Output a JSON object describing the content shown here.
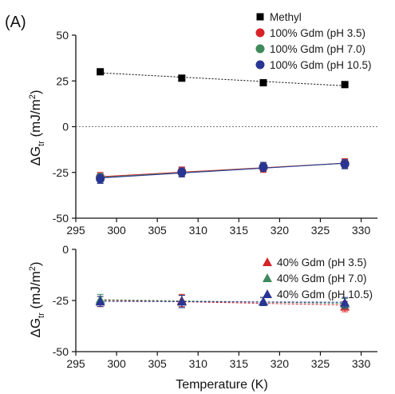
{
  "figure": {
    "panel_label": "(A)",
    "xlabel": "Temperature (K)",
    "ylabel_main": "ΔG",
    "ylabel_sub": "tr",
    "ylabel_unit": " (mJ/m",
    "ylabel_sup": "2",
    "ylabel_close": ")"
  },
  "chart_data": [
    {
      "type": "scatter",
      "xlim": [
        295,
        332
      ],
      "ylim": [
        -50,
        50
      ],
      "xticks": [
        295,
        300,
        305,
        310,
        315,
        320,
        325,
        330
      ],
      "yticks": [
        -50,
        -25,
        0,
        25,
        50
      ],
      "zero_line": true,
      "legend_position": "top-right",
      "series": [
        {
          "name": "Methyl",
          "marker": "square",
          "color": "#000000",
          "line": "dotted",
          "x": [
            298,
            308,
            318,
            328
          ],
          "y": [
            30,
            26.5,
            24,
            23
          ],
          "err": [
            0,
            0,
            0,
            0
          ]
        },
        {
          "name": "100% Gdm (pH 3.5)",
          "marker": "circle",
          "color": "#d8232a",
          "line": "solid",
          "x": [
            298,
            308,
            318,
            328
          ],
          "y": [
            -27.5,
            -24.5,
            -22.5,
            -20
          ],
          "err": [
            2.5,
            2.5,
            2.5,
            2.5
          ]
        },
        {
          "name": "100% Gdm (pH 7.0)",
          "marker": "circle",
          "color": "#3f8a5c",
          "line": "solid",
          "x": [
            298,
            308,
            318,
            328
          ],
          "y": [
            -28,
            -25,
            -22,
            -20.5
          ],
          "err": [
            2.5,
            2.5,
            2.5,
            2.5
          ]
        },
        {
          "name": "100% Gdm (pH 10.5)",
          "marker": "circle",
          "color": "#283593",
          "line": "solid",
          "x": [
            298,
            308,
            318,
            328
          ],
          "y": [
            -28.5,
            -25,
            -22,
            -20.5
          ],
          "err": [
            2.5,
            2.5,
            2.5,
            2.5
          ]
        }
      ]
    },
    {
      "type": "scatter",
      "xlim": [
        295,
        332
      ],
      "ylim": [
        -50,
        0
      ],
      "xticks": [
        295,
        300,
        305,
        310,
        315,
        320,
        325,
        330
      ],
      "yticks": [
        -50,
        -25,
        0
      ],
      "zero_line": false,
      "legend_position": "top-right",
      "series": [
        {
          "name": "40% Gdm (pH 3.5)",
          "marker": "triangle",
          "color": "#d8232a",
          "line": "dashed",
          "x": [
            298,
            308,
            318,
            328
          ],
          "y": [
            -25.5,
            -25,
            -25.5,
            -28
          ],
          "err": [
            2.5,
            3,
            2,
            2.5
          ]
        },
        {
          "name": "40% Gdm (pH 7.0)",
          "marker": "triangle",
          "color": "#3f8a5c",
          "line": "dashed",
          "x": [
            298,
            308,
            318,
            328
          ],
          "y": [
            -24.5,
            -25.5,
            -25.5,
            -26.5
          ],
          "err": [
            2.5,
            3,
            2,
            2.5
          ]
        },
        {
          "name": "40% Gdm (pH 10.5)",
          "marker": "triangle",
          "color": "#283593",
          "line": "dashed",
          "x": [
            298,
            308,
            318,
            328
          ],
          "y": [
            -25.5,
            -25.5,
            -25.5,
            -26
          ],
          "err": [
            2.5,
            3,
            2,
            2.5
          ]
        }
      ]
    }
  ]
}
